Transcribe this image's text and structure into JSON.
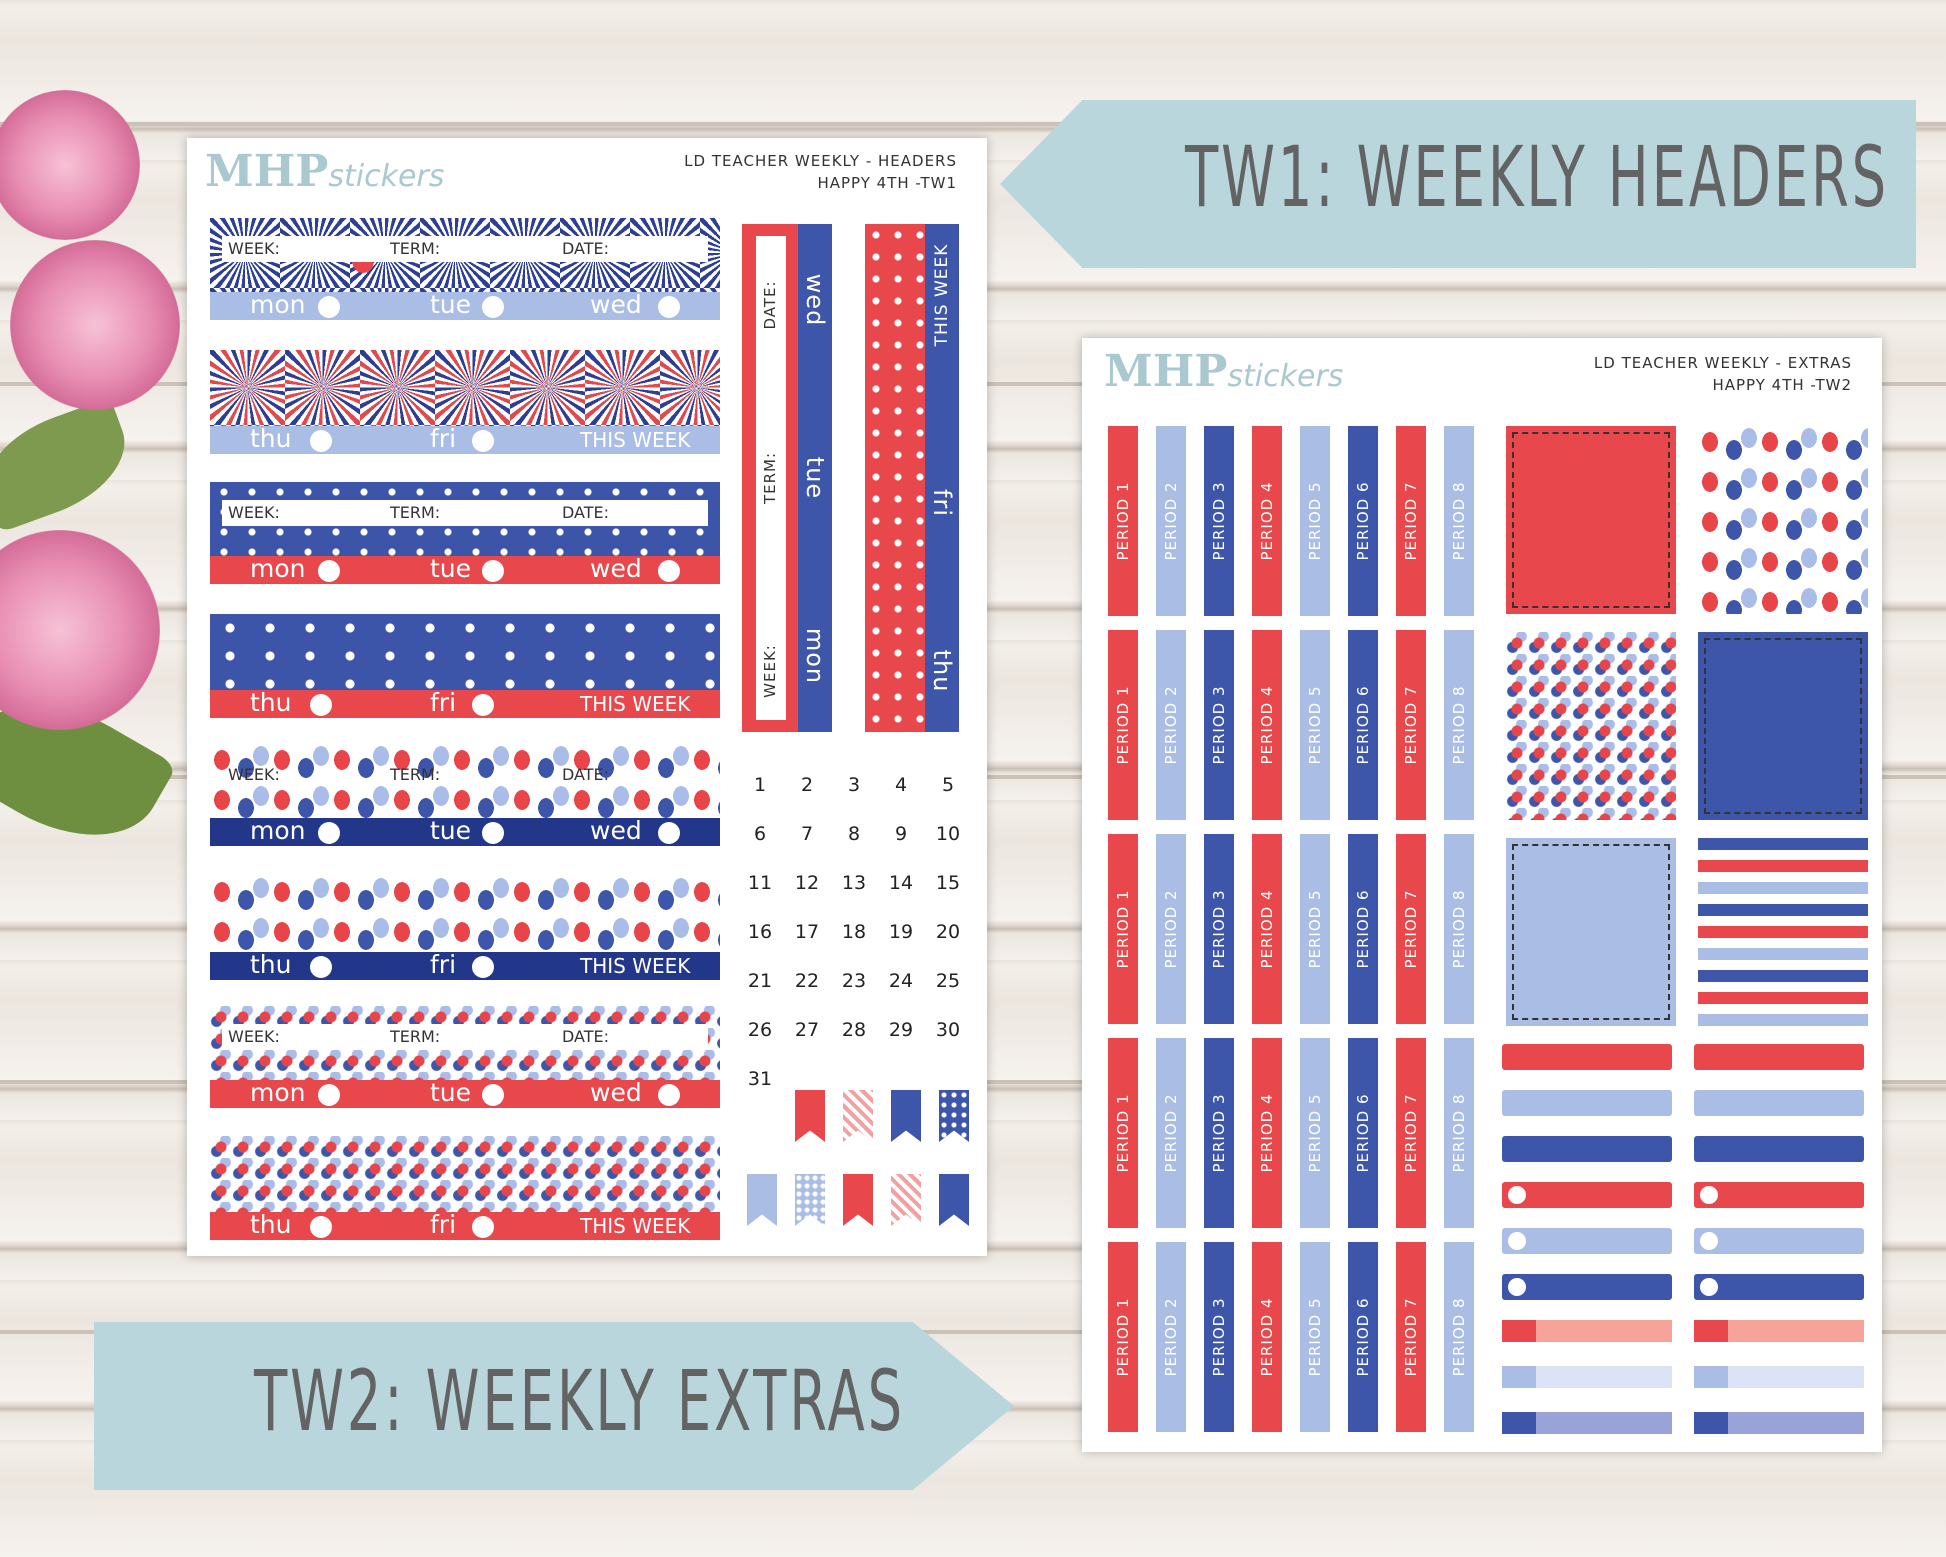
{
  "banners": {
    "tw1": "TW1: WEEKLY HEADERS",
    "tw2": "TW2: WEEKLY EXTRAS"
  },
  "sheet1": {
    "logo_main": "MHP",
    "logo_script": "stickers",
    "title_line1": "LD TEACHER WEEKLY - HEADERS",
    "title_line2": "HAPPY 4TH -TW1",
    "fields": {
      "week": "WEEK:",
      "term": "TERM:",
      "date": "DATE:"
    },
    "days_a": [
      "mon",
      "tue",
      "wed"
    ],
    "days_b": [
      "thu",
      "fri"
    ],
    "this_week": "THIS WEEK",
    "vertical": {
      "date": "DATE:",
      "term": "TERM:",
      "week": "WEEK:",
      "days": [
        "wed",
        "tue",
        "mon"
      ],
      "this_week": "THIS WEEK",
      "days2": [
        "fri",
        "thu"
      ]
    },
    "calendar": [
      "1",
      "2",
      "3",
      "4",
      "5",
      "6",
      "7",
      "8",
      "9",
      "10",
      "11",
      "12",
      "13",
      "14",
      "15",
      "16",
      "17",
      "18",
      "19",
      "20",
      "21",
      "22",
      "23",
      "24",
      "25",
      "26",
      "27",
      "28",
      "29",
      "30",
      "31"
    ]
  },
  "sheet2": {
    "logo_main": "MHP",
    "logo_script": "stickers",
    "title_line1": "LD TEACHER WEEKLY - EXTRAS",
    "title_line2": "HAPPY 4TH -TW2",
    "periods": [
      "PERIOD 1",
      "PERIOD 2",
      "PERIOD 3",
      "PERIOD 4",
      "PERIOD 5",
      "PERIOD 6",
      "PERIOD 7",
      "PERIOD 8"
    ]
  },
  "colors": {
    "red": "#e8474b",
    "light_blue": "#aabde4",
    "blue": "#3e56aa",
    "navy": "#22378a",
    "banner": "#b9d6dc"
  }
}
